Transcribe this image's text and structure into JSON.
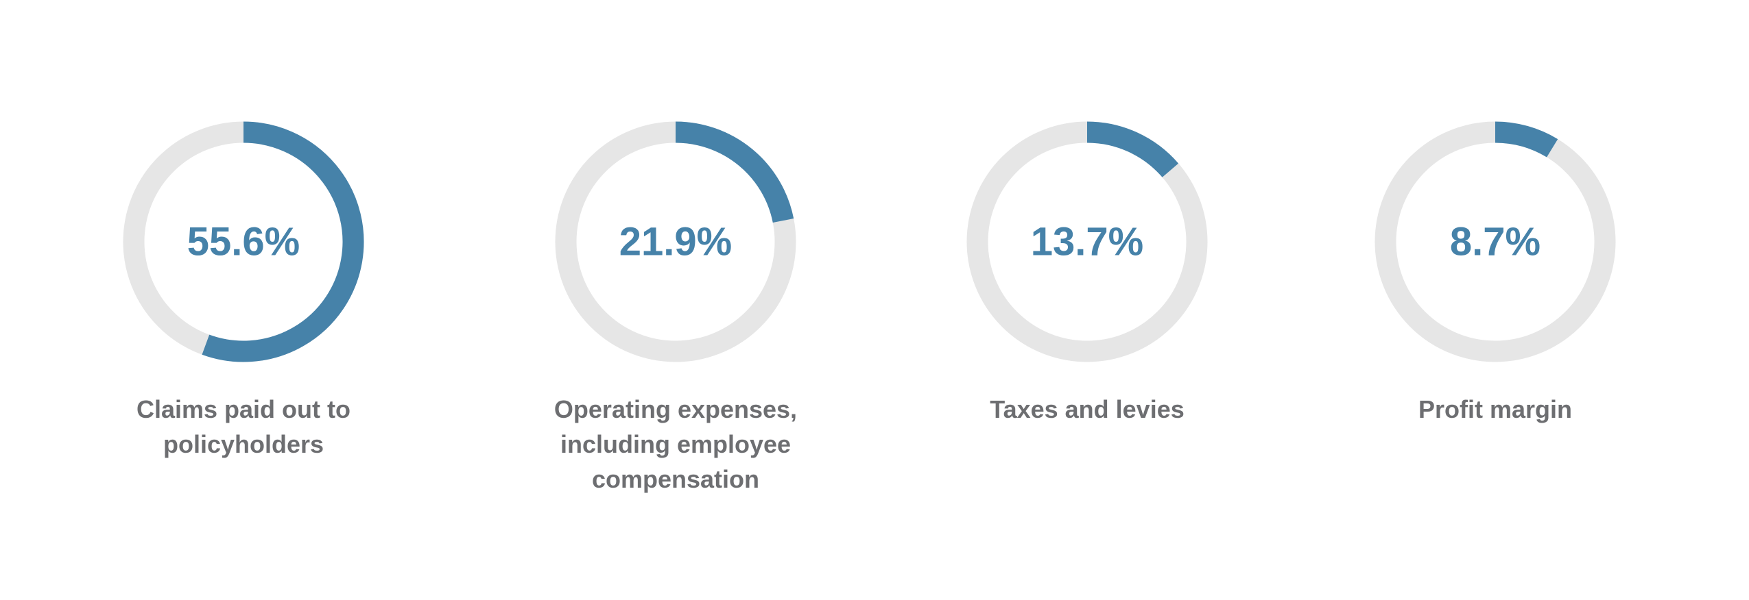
{
  "chart_data": {
    "type": "pie",
    "title": "",
    "percent_unit": "%",
    "items": [
      {
        "name": "Claims paid out to policyholders",
        "label": "Claims paid out to\npolicyholders",
        "value": 55.6,
        "value_text": "55.6%"
      },
      {
        "name": "Operating expenses, including employee compensation",
        "label": "Operating expenses,\nincluding employee\ncompensation",
        "value": 21.9,
        "value_text": "21.9%"
      },
      {
        "name": "Taxes and levies",
        "label": "Taxes and levies",
        "value": 13.7,
        "value_text": "13.7%"
      },
      {
        "name": "Profit margin",
        "label": "Profit margin",
        "value": 8.7,
        "value_text": "8.7%"
      }
    ]
  },
  "colors": {
    "accent": "#4682a9",
    "track": "#e6e6e6",
    "label_text": "#6d6e71"
  }
}
